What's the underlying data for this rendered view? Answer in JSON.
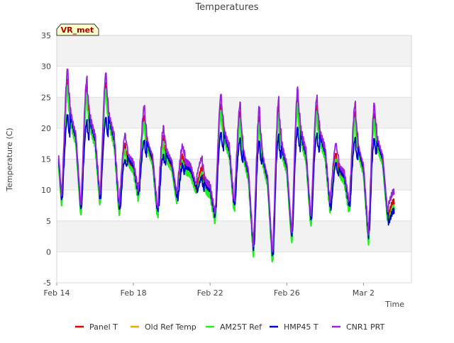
{
  "chart_data": {
    "type": "line",
    "title": "Temperatures",
    "xlabel": "Time",
    "ylabel": "Temperature (C)",
    "badge": "VR_met",
    "ylim": [
      -5,
      35
    ],
    "y_ticks": [
      -5,
      0,
      5,
      10,
      15,
      20,
      25,
      30,
      35
    ],
    "x_range": [
      "2023-02-14",
      "2023-03-04T12:00"
    ],
    "x_ticks": [
      {
        "label": "Feb 14",
        "date": "2023-02-14"
      },
      {
        "label": "Feb 18",
        "date": "2023-02-18"
      },
      {
        "label": "Feb 22",
        "date": "2023-02-22"
      },
      {
        "label": "Feb 26",
        "date": "2023-02-26"
      },
      {
        "label": "Mar 2",
        "date": "2023-03-02"
      }
    ],
    "grid": true,
    "band_colors": [
      "#f2f2f2",
      "#ffffff"
    ],
    "legend_position": "bottom",
    "series": [
      {
        "name": "Panel T",
        "color": "#dd0000",
        "width": 1.8
      },
      {
        "name": "Old Ref Temp",
        "color": "#f5a700",
        "width": 1.8
      },
      {
        "name": "AM25T Ref",
        "color": "#22ee22",
        "width": 2.2
      },
      {
        "name": "HMP45 T",
        "color": "#0000cc",
        "width": 1.8
      },
      {
        "name": "CNR1 PRT",
        "color": "#9a22dd",
        "width": 1.8
      }
    ],
    "daily_cycle_reference": {
      "description": "Approximate daily minimum/maximum reference (AM25T Ref), one entry per day starting Feb 14",
      "days": [
        "Feb 14",
        "Feb 15",
        "Feb 16",
        "Feb 17",
        "Feb 18",
        "Feb 19",
        "Feb 20",
        "Feb 21",
        "Feb 22",
        "Feb 23",
        "Feb 24",
        "Feb 25",
        "Feb 26",
        "Feb 27",
        "Feb 28",
        "Mar 1",
        "Mar 2",
        "Mar 3"
      ],
      "min": [
        7.5,
        5.8,
        7.5,
        6.0,
        8.5,
        5.5,
        8.0,
        9.5,
        4.8,
        6.5,
        -0.5,
        -2.0,
        1.5,
        4.0,
        6.5,
        6.5,
        1.5,
        5.0
      ],
      "max": [
        27.0,
        25.5,
        26.5,
        16.5,
        21.0,
        17.5,
        14.5,
        12.5,
        23.0,
        21.5,
        21.0,
        22.0,
        24.0,
        22.5,
        15.0,
        21.5,
        21.5,
        7.0
      ]
    }
  }
}
